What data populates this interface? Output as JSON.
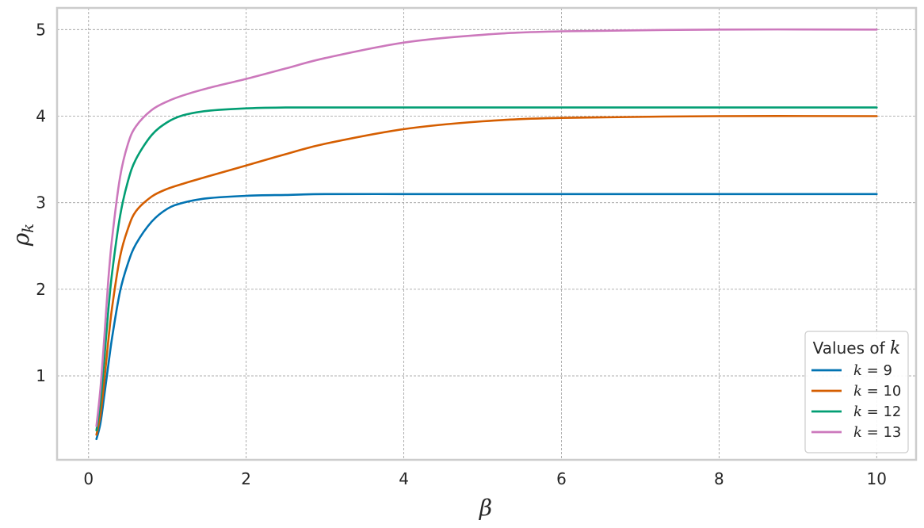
{
  "chart_data": {
    "type": "line",
    "title": "",
    "xlabel": "β",
    "ylabel": "ρ",
    "ylabel_subscript": "k",
    "xlim": [
      -0.4,
      10.5
    ],
    "ylim": [
      0.03,
      5.25
    ],
    "xticks": [
      0,
      2,
      4,
      6,
      8,
      10
    ],
    "yticks": [
      1,
      2,
      3,
      4,
      5
    ],
    "grid": true,
    "legend": {
      "title_prefix": "Values of ",
      "title_var": "k",
      "placement": "bottom-right"
    },
    "series": [
      {
        "name": "k = 9",
        "label_var": "k",
        "label_rest": " = 9",
        "color": "#0173b2",
        "x": [
          0.1,
          0.15,
          0.2,
          0.25,
          0.3,
          0.4,
          0.5,
          0.6,
          0.8,
          1.0,
          1.2,
          1.5,
          2.0,
          2.5,
          3.0,
          4.0,
          5.0,
          6.0,
          8.0,
          10.0
        ],
        "y": [
          0.27,
          0.45,
          0.78,
          1.12,
          1.45,
          1.98,
          2.3,
          2.52,
          2.78,
          2.93,
          3.0,
          3.05,
          3.08,
          3.09,
          3.1,
          3.1,
          3.1,
          3.1,
          3.1,
          3.1
        ]
      },
      {
        "name": "k = 10",
        "label_var": "k",
        "label_rest": " = 10",
        "color": "#d55e00",
        "x": [
          0.1,
          0.15,
          0.2,
          0.25,
          0.3,
          0.4,
          0.5,
          0.6,
          0.8,
          1.0,
          1.2,
          1.5,
          2.0,
          2.5,
          3.0,
          4.0,
          5.0,
          6.0,
          8.0,
          10.0
        ],
        "y": [
          0.32,
          0.55,
          0.95,
          1.4,
          1.8,
          2.38,
          2.7,
          2.9,
          3.07,
          3.16,
          3.22,
          3.3,
          3.43,
          3.56,
          3.68,
          3.85,
          3.94,
          3.98,
          4.0,
          4.0
        ]
      },
      {
        "name": "k = 12",
        "label_var": "k",
        "label_rest": " = 12",
        "color": "#029e73",
        "x": [
          0.1,
          0.15,
          0.2,
          0.25,
          0.3,
          0.4,
          0.5,
          0.6,
          0.8,
          1.0,
          1.2,
          1.5,
          2.0,
          2.5,
          3.0,
          4.0,
          5.0,
          6.0,
          8.0,
          10.0
        ],
        "y": [
          0.37,
          0.7,
          1.2,
          1.75,
          2.2,
          2.85,
          3.25,
          3.5,
          3.78,
          3.93,
          4.01,
          4.06,
          4.09,
          4.1,
          4.1,
          4.1,
          4.1,
          4.1,
          4.1,
          4.1
        ]
      },
      {
        "name": "k = 13",
        "label_var": "k",
        "label_rest": " = 13",
        "color": "#cc78bc",
        "x": [
          0.1,
          0.15,
          0.2,
          0.25,
          0.3,
          0.4,
          0.5,
          0.6,
          0.8,
          1.0,
          1.2,
          1.5,
          2.0,
          2.5,
          3.0,
          4.0,
          5.0,
          6.0,
          8.0,
          10.0
        ],
        "y": [
          0.42,
          0.85,
          1.45,
          2.1,
          2.6,
          3.3,
          3.68,
          3.88,
          4.07,
          4.17,
          4.24,
          4.32,
          4.43,
          4.55,
          4.67,
          4.85,
          4.94,
          4.98,
          5.0,
          5.0
        ]
      }
    ]
  }
}
